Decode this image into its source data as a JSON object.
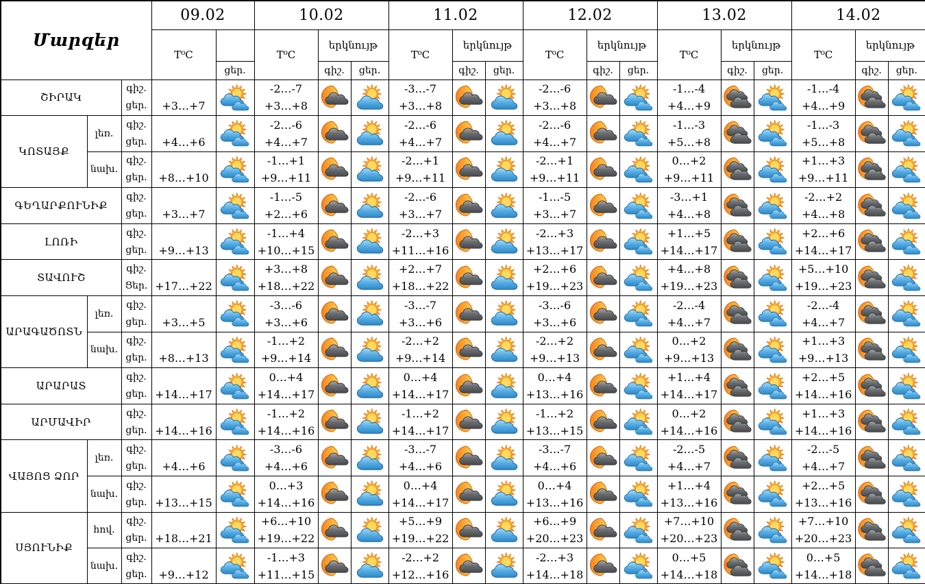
{
  "table": {
    "corner_title": "Մարզեր",
    "headers": {
      "temp": "T⁰C",
      "sky": "երկնույթ",
      "night": "գիշ.",
      "day": "ցեր."
    },
    "icon_colors": {
      "sun_orange": "#F58220",
      "sun_yellow": "#FDC830",
      "cloud_blue": "#56ADE4",
      "cloud_blue_outline": "#1569A8",
      "cloud_gray": "#6A6D70",
      "cloud_gray_outline": "#303234",
      "moon_orange": "#F58220",
      "border_black": "#000000"
    },
    "dates": [
      {
        "date": "09.02",
        "day_icon": "sun-clouds"
      },
      {
        "date": "10.02",
        "night_icon": "moon-cloud",
        "day_icon": "sun-cloud"
      },
      {
        "date": "11.02",
        "night_icon": "moon-cloud",
        "day_icon": "sun-cloud"
      },
      {
        "date": "12.02",
        "night_icon": "moon-cloud",
        "day_icon": "sun-clouds"
      },
      {
        "date": "13.02",
        "night_icon": "moon-clouds",
        "day_icon": "sun-clouds"
      },
      {
        "date": "14.02",
        "night_icon": "moon-clouds",
        "day_icon": "sun-clouds"
      }
    ],
    "regions": [
      {
        "name": "ՇԻՐԱԿ",
        "zones": [
          {
            "zone": "",
            "labels": [
              "գիշ.",
              "ցեր."
            ],
            "temps": [
              [
                "",
                "+3…+7"
              ],
              [
                "-2…-7",
                "+3…+8"
              ],
              [
                "-3…-7",
                "+3…+8"
              ],
              [
                "-2…-6",
                "+3…+8"
              ],
              [
                "-1…-4",
                "+4…+9"
              ],
              [
                "-1…-4",
                "+4…+9"
              ]
            ]
          }
        ]
      },
      {
        "name": "ԿՈՏԱՅՔ",
        "zones": [
          {
            "zone": "լեռ.",
            "labels": [
              "գիշ.",
              "ցեր."
            ],
            "temps": [
              [
                "",
                "+4…+6"
              ],
              [
                "-2…-6",
                "+4…+7"
              ],
              [
                "-2…-6",
                "+4…+7"
              ],
              [
                "-2…-6",
                "+4…+7"
              ],
              [
                "-1…-3",
                "+5…+8"
              ],
              [
                "-1…-3",
                "+5…+8"
              ]
            ]
          },
          {
            "zone": "նախ.",
            "labels": [
              "գիշ.",
              "ցեր."
            ],
            "temps": [
              [
                "",
                "+8…+10"
              ],
              [
                "-1…+1",
                "+9…+11"
              ],
              [
                "-2…+1",
                "+9…+11"
              ],
              [
                "-2…+1",
                "+9…+11"
              ],
              [
                "0…+2",
                "+9…+11"
              ],
              [
                "+1…+3",
                "+9…+11"
              ]
            ]
          }
        ]
      },
      {
        "name": "ԳԵՂԱՐՔՈՒՆԻՔ",
        "zones": [
          {
            "zone": "",
            "labels": [
              "գիշ.",
              "ցեր."
            ],
            "temps": [
              [
                "",
                "+3…+7"
              ],
              [
                "-1…-5",
                "+2…+6"
              ],
              [
                "-2…-6",
                "+3…+7"
              ],
              [
                "-1…-5",
                "+3…+7"
              ],
              [
                "-3…+1",
                "+4…+8"
              ],
              [
                "-2…+2",
                "+4…+8"
              ]
            ]
          }
        ]
      },
      {
        "name": "ԼՈՌԻ",
        "zones": [
          {
            "zone": "",
            "labels": [
              "գիշ.",
              "ցեր."
            ],
            "temps": [
              [
                "",
                "+9…+13"
              ],
              [
                "-1…+4",
                "+10…+15"
              ],
              [
                "-2…+3",
                "+11…+16"
              ],
              [
                "-2…+3",
                "+13…+17"
              ],
              [
                "+1…+5",
                "+14…+17"
              ],
              [
                "+2…+6",
                "+14…+17"
              ]
            ]
          }
        ]
      },
      {
        "name": "ՏԱՎՈՒՇ",
        "zones": [
          {
            "zone": "",
            "labels": [
              "գիշ.",
              "Ցեր."
            ],
            "temps": [
              [
                "",
                "+17…+22"
              ],
              [
                "+3…+8",
                "+18…+22"
              ],
              [
                "+2…+7",
                "+18…+22"
              ],
              [
                "+2…+6",
                "+19…+23"
              ],
              [
                "+4…+8",
                "+19…+23"
              ],
              [
                "+5…+10",
                "+19…+23"
              ]
            ]
          }
        ]
      },
      {
        "name": "ԱՐԱԳԱԾՈՏՆ",
        "zones": [
          {
            "zone": "լեռ.",
            "labels": [
              "գիշ.",
              "ցեր."
            ],
            "temps": [
              [
                "",
                "+3…+5"
              ],
              [
                "-3…-6",
                "+3…+6"
              ],
              [
                "-3…-7",
                "+3…+6"
              ],
              [
                "-3…-6",
                "+3…+6"
              ],
              [
                "-2…-4",
                "+4…+7"
              ],
              [
                "-2…-4",
                "+4…+7"
              ]
            ]
          },
          {
            "zone": "նախ.",
            "labels": [
              "գիշ.",
              "ցեր."
            ],
            "temps": [
              [
                "",
                "+8…+13"
              ],
              [
                "-1…+2",
                "+9…+14"
              ],
              [
                "-2…+2",
                "+9…+14"
              ],
              [
                "-2…+2",
                "+9…+13"
              ],
              [
                "0…+2",
                "+9…+13"
              ],
              [
                "+1…+3",
                "+9…+13"
              ]
            ]
          }
        ]
      },
      {
        "name": "ԱՐԱՐԱՏ",
        "zones": [
          {
            "zone": "",
            "labels": [
              "գիշ.",
              "ցեր."
            ],
            "temps": [
              [
                "",
                "+14…+17"
              ],
              [
                "0…+4",
                "+14…+17"
              ],
              [
                "0…+4",
                "+14…+17"
              ],
              [
                "0…+4",
                "+13…+16"
              ],
              [
                "+1…+4",
                "+14…+17"
              ],
              [
                "+2…+5",
                "+14…+16"
              ]
            ]
          }
        ]
      },
      {
        "name": "ԱՐՄԱՎԻՐ",
        "zones": [
          {
            "zone": "",
            "labels": [
              "գիշ.",
              "ցեր."
            ],
            "temps": [
              [
                "",
                "+14…+16"
              ],
              [
                "-1…+2",
                "+14…+16"
              ],
              [
                "-1…+2",
                "+14…+17"
              ],
              [
                "-1…+2",
                "+13…+15"
              ],
              [
                "0…+2",
                "+14…+16"
              ],
              [
                "+1…+3",
                "+14…+16"
              ]
            ]
          }
        ]
      },
      {
        "name": "ՎԱՅՈՑ ՁՈՐ",
        "zones": [
          {
            "zone": "լեռ.",
            "labels": [
              "գիշ.",
              "ցեր."
            ],
            "temps": [
              [
                "",
                "+4…+6"
              ],
              [
                "-3…-6",
                "+4…+6"
              ],
              [
                "-3…-7",
                "+4…+6"
              ],
              [
                "-3…-7",
                "+4…+6"
              ],
              [
                "-2…-5",
                "+4…+7"
              ],
              [
                "-2…-5",
                "+4…+7"
              ]
            ]
          },
          {
            "zone": "նախ.",
            "labels": [
              "գիշ.",
              "ցեր."
            ],
            "temps": [
              [
                "",
                "+13…+15"
              ],
              [
                "0…+3",
                "+14…+16"
              ],
              [
                "0…+4",
                "+14…+17"
              ],
              [
                "0…+4",
                "+13…+16"
              ],
              [
                "+1…+4",
                "+13…+16"
              ],
              [
                "+2…+5",
                "+13…+16"
              ]
            ]
          }
        ]
      },
      {
        "name": "ՍՅՈՒՆԻՔ",
        "zones": [
          {
            "zone": "հով.",
            "labels": [
              "գիշ.",
              "ցեր."
            ],
            "temps": [
              [
                "",
                "+18…+21"
              ],
              [
                "+6…+10",
                "+19…+22"
              ],
              [
                "+5…+9",
                "+19…+22"
              ],
              [
                "+6…+9",
                "+20…+23"
              ],
              [
                "+7…+10",
                "+20…+23"
              ],
              [
                "+7…+10",
                "+20…+23"
              ]
            ]
          },
          {
            "zone": "նախ.",
            "labels": [
              "գիշ.",
              "ցեր."
            ],
            "temps": [
              [
                "",
                "+9…+12"
              ],
              [
                "-1…+3",
                "+11…+15"
              ],
              [
                "-2…+2",
                "+12…+16"
              ],
              [
                "-2…+3",
                "+14…+18"
              ],
              [
                "0…+5",
                "+14…+18"
              ],
              [
                "0…+5",
                "+14…+18"
              ]
            ]
          }
        ]
      }
    ]
  }
}
